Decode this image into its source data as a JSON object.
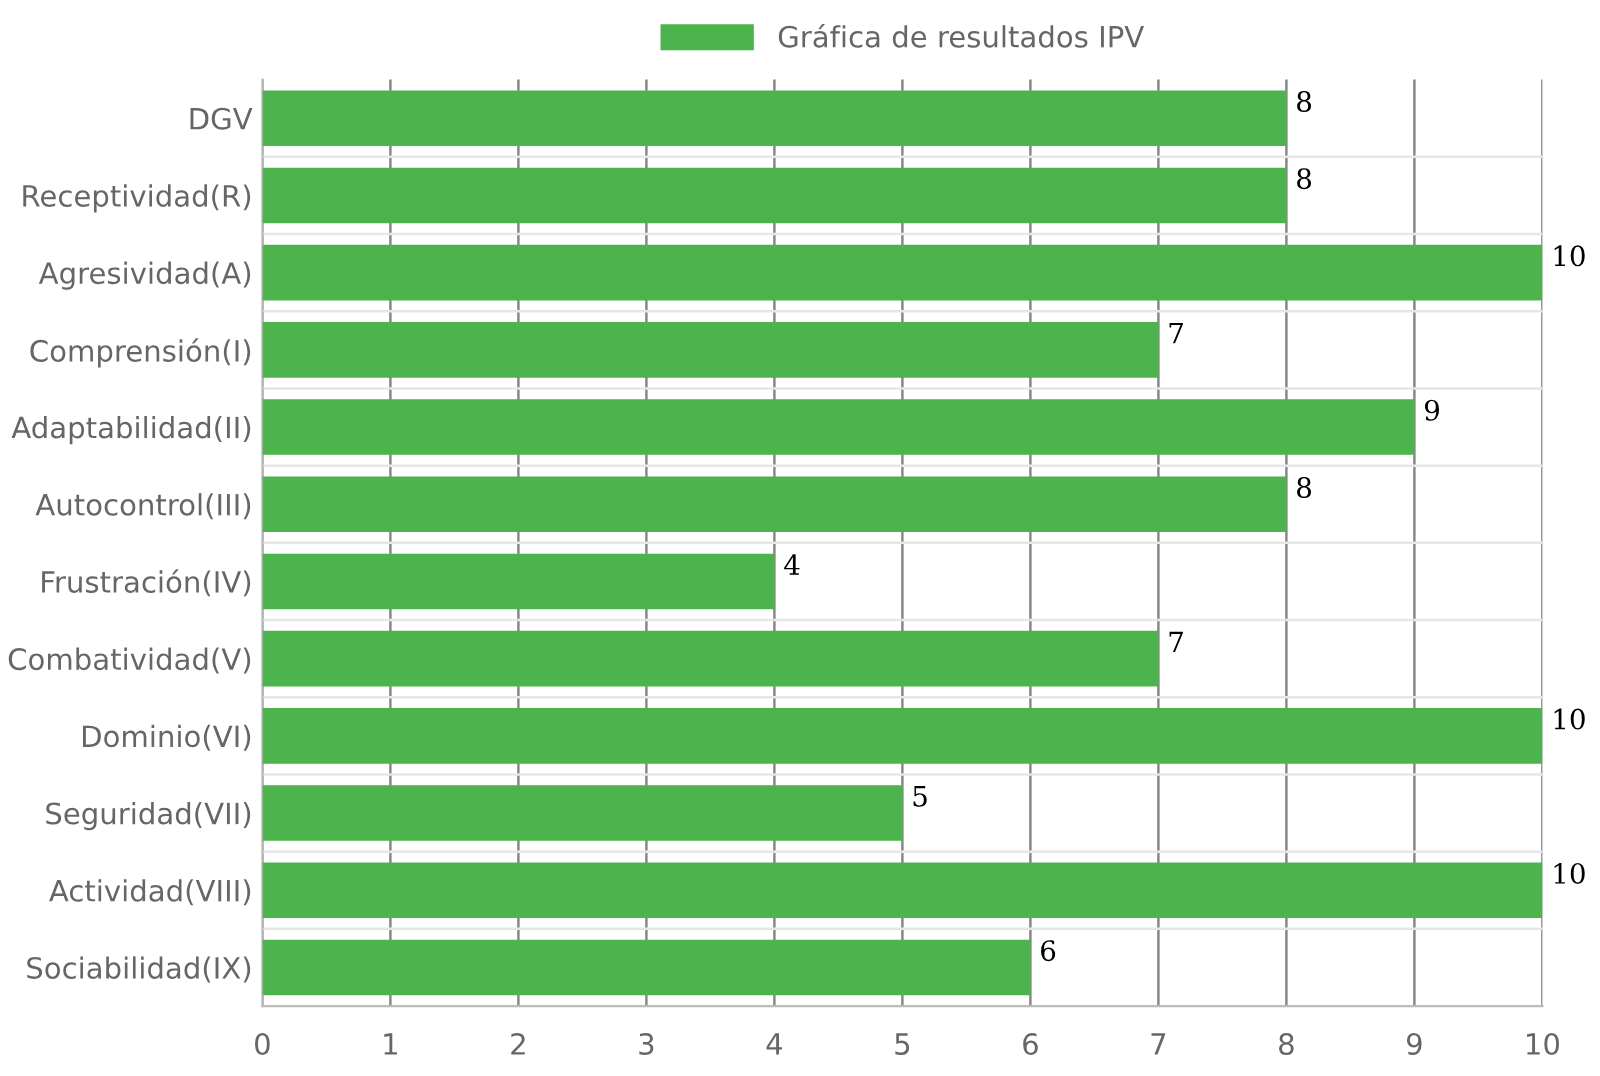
{
  "chart_data": {
    "type": "bar",
    "orientation": "horizontal",
    "categories": [
      "DGV",
      "Receptividad(R)",
      "Agresividad(A)",
      "Comprensión(I)",
      "Adaptabilidad(II)",
      "Autocontrol(III)",
      "Frustración(IV)",
      "Combatividad(V)",
      "Dominio(VI)",
      "Seguridad(VII)",
      "Actividad(VIII)",
      "Sociabilidad(IX)"
    ],
    "series": [
      {
        "name": "Gráfica de resultados IPV",
        "color": "#4db34d",
        "values": [
          8,
          8,
          10,
          7,
          9,
          8,
          4,
          7,
          10,
          5,
          10,
          6
        ]
      }
    ],
    "xlim": [
      0,
      10
    ],
    "xticks": [
      0,
      1,
      2,
      3,
      4,
      5,
      6,
      7,
      8,
      9,
      10
    ],
    "grid": true,
    "legend": "top",
    "data_labels": true
  }
}
